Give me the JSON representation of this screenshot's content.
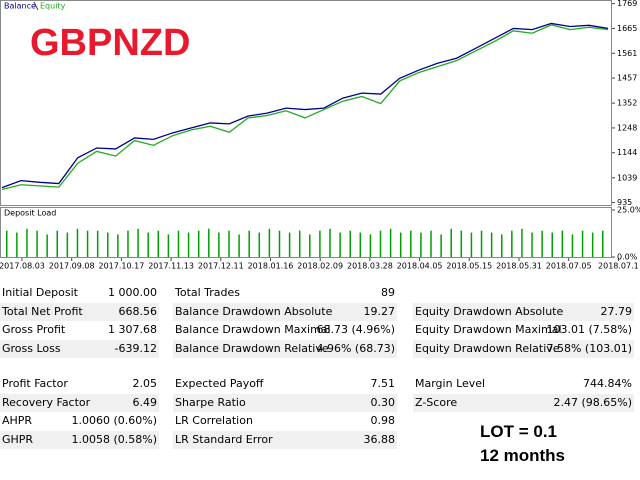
{
  "chart_data": [
    {
      "type": "line",
      "series": [
        {
          "name": "Balance",
          "color": "#00008b",
          "values": [
            998,
            1027,
            1020,
            1015,
            1123,
            1164,
            1160,
            1206,
            1200,
            1227,
            1248,
            1269,
            1265,
            1298,
            1310,
            1331,
            1325,
            1331,
            1373,
            1394,
            1390,
            1456,
            1490,
            1519,
            1540,
            1581,
            1623,
            1665,
            1660,
            1686,
            1673,
            1678,
            1665
          ]
        },
        {
          "name": "Equity",
          "color": "#22aa22",
          "values": [
            990,
            1010,
            1005,
            1000,
            1100,
            1150,
            1130,
            1195,
            1175,
            1215,
            1240,
            1255,
            1230,
            1290,
            1300,
            1320,
            1290,
            1325,
            1360,
            1380,
            1350,
            1445,
            1480,
            1505,
            1530,
            1570,
            1610,
            1655,
            1645,
            1680,
            1660,
            1670,
            1660
          ]
        }
      ],
      "ylim": [
        925,
        1780
      ],
      "yticks": [
        935,
        1039,
        1144,
        1248,
        1352,
        1457,
        1561,
        1665,
        1769
      ],
      "x_labels": [
        "2017.08.03",
        "2017.09.08",
        "2017.10.17",
        "2017.11.13",
        "2017.12.11",
        "2018.01.16",
        "2018.02.09",
        "2018.03.28",
        "2018.04.05",
        "2018.05.15",
        "2018.05.31",
        "2018.07.05",
        "2018.07.1"
      ]
    },
    {
      "type": "bar",
      "title": "Deposit Load",
      "color": "#00a000",
      "values": [
        14,
        13,
        15,
        14,
        12,
        14,
        13,
        15,
        14,
        14,
        13,
        12,
        14,
        15,
        13,
        14,
        12,
        14,
        13,
        14,
        15,
        13,
        14,
        12,
        14,
        13,
        15,
        14,
        13,
        14,
        12,
        14,
        15,
        13,
        14,
        13,
        12,
        14,
        15,
        13,
        14,
        13,
        14,
        12,
        15,
        14,
        13,
        14,
        13,
        12,
        14,
        15,
        13,
        14,
        13,
        14,
        12,
        14,
        13,
        14
      ],
      "ylim": [
        0,
        25
      ],
      "yticks": [
        {
          "value": 25,
          "label": "25.0%"
        },
        {
          "value": 0,
          "label": "0.0%"
        }
      ]
    }
  ],
  "stats": {
    "columns": [
      [
        [
          "Initial Deposit",
          "1 000.00"
        ],
        [
          "Total Net Profit",
          "668.56"
        ],
        [
          "Gross Profit",
          "1 307.68"
        ],
        [
          "Gross Loss",
          "-639.12"
        ],
        [
          "Profit Factor",
          "2.05"
        ],
        [
          "Recovery Factor",
          "6.49"
        ],
        [
          "AHPR",
          "1.0060 (0.60%)"
        ],
        [
          "GHPR",
          "1.0058 (0.58%)"
        ]
      ],
      [
        [
          "Total Trades",
          "89"
        ],
        [
          "Balance Drawdown Absolute",
          "19.27"
        ],
        [
          "Balance Drawdown Maximal",
          "68.73 (4.96%)"
        ],
        [
          "Balance Drawdown Relative",
          "4.96% (68.73)"
        ],
        [
          "Expected Payoff",
          "7.51"
        ],
        [
          "Sharpe Ratio",
          "0.30"
        ],
        [
          "LR Correlation",
          "0.98"
        ],
        [
          "LR Standard Error",
          "36.88"
        ]
      ],
      [
        null,
        [
          "Equity Drawdown Absolute",
          "27.79"
        ],
        [
          "Equity Drawdown Maximal",
          "103.01 (7.58%)"
        ],
        [
          "Equity Drawdown Relative",
          "7.58% (103.01)"
        ],
        [
          "Margin Level",
          "744.84%"
        ],
        [
          "Z-Score",
          "2.47 (98.65%)"
        ]
      ]
    ]
  },
  "overlay": {
    "symbol": "GBPNZD",
    "lot": "LOT = 0.1",
    "period": "12 months"
  }
}
